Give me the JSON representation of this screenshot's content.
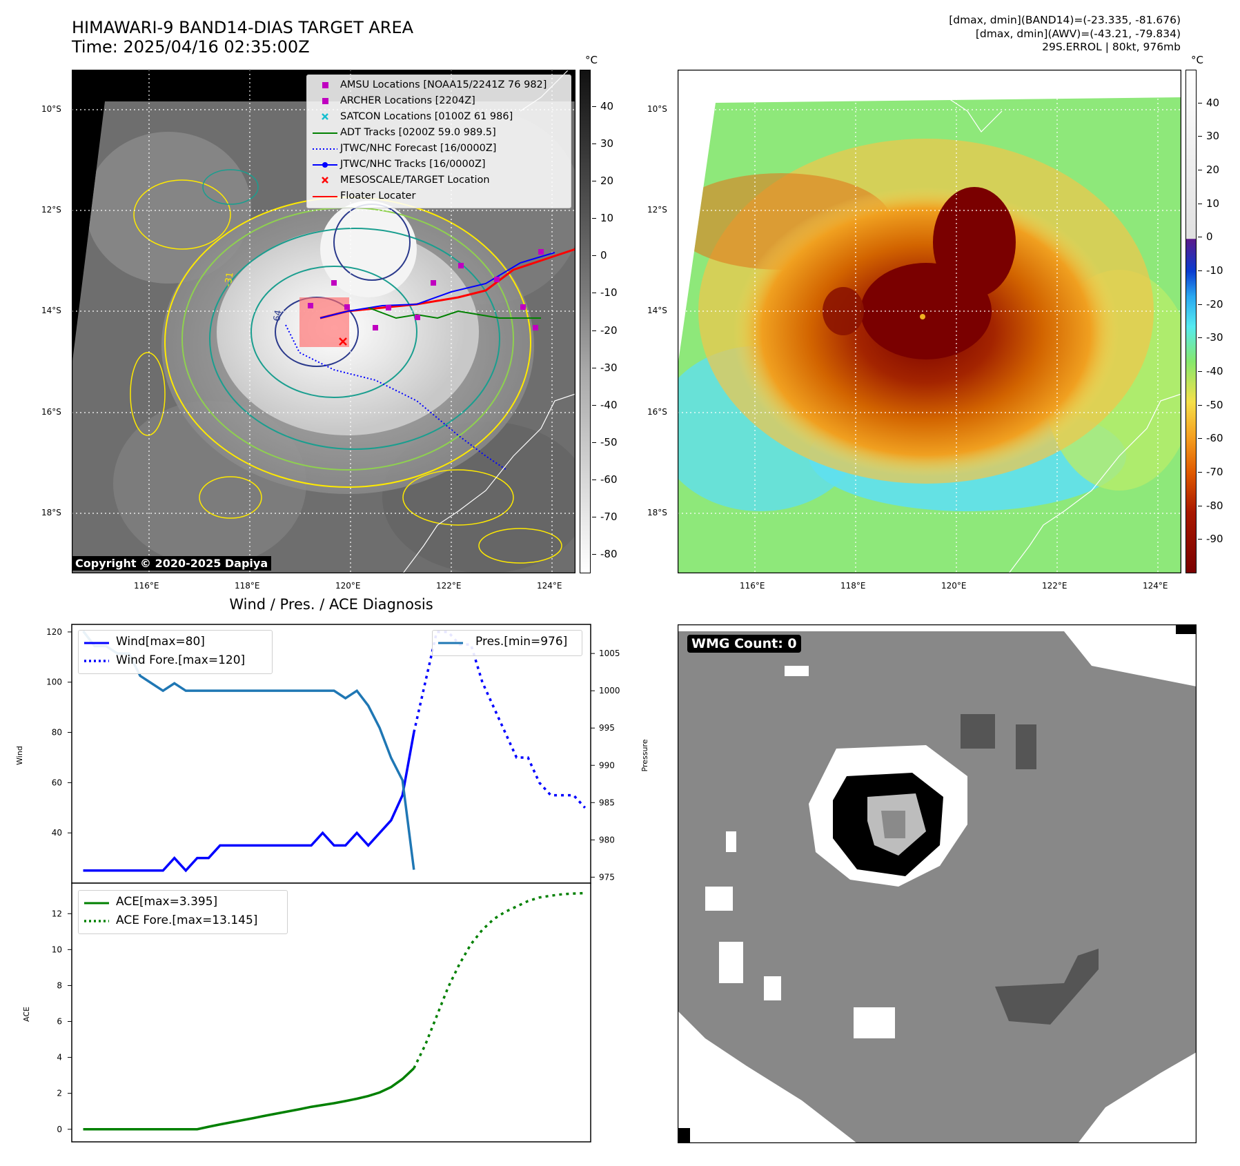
{
  "header": {
    "title_line1": "HIMAWARI-9 BAND14-DIAS TARGET AREA",
    "title_line2": "Time: 2025/04/16 02:35:00Z",
    "info_line1": "[dmax, dmin](BAND14)=(-23.335, -81.676)",
    "info_line2": "[dmax, dmin](AWV)=(-43.21, -79.834)",
    "info_line3": "29S.ERROL | 80kt, 976mb"
  },
  "map_axes": {
    "lat_labels": [
      "10°S",
      "12°S",
      "14°S",
      "16°S",
      "18°S"
    ],
    "lon_labels": [
      "116°E",
      "118°E",
      "120°E",
      "122°E",
      "124°E"
    ]
  },
  "left_map": {
    "copyright": "Copyright © 2020-2025 Dapiya",
    "contour_label": "-31",
    "contour_label_inner": "-64",
    "legend": [
      {
        "label": "AMSU Locations [NOAA15/2241Z 76 982]",
        "symbol": "square",
        "color": "#c000c0"
      },
      {
        "label": "ARCHER Locations [2204Z]",
        "symbol": "square",
        "color": "#c000c0"
      },
      {
        "label": "SATCON Locations [0100Z 61 986]",
        "symbol": "x",
        "color": "#17becf"
      },
      {
        "label": "ADT Tracks [0200Z 59.0 989.5]",
        "symbol": "line",
        "color": "#008000"
      },
      {
        "label": "JTWC/NHC Forecast [16/0000Z]",
        "symbol": "dotted",
        "color": "#0000ff"
      },
      {
        "label": "JTWC/NHC Tracks [16/0000Z]",
        "symbol": "line-dot",
        "color": "#0000ff"
      },
      {
        "label": "MESOSCALE/TARGET Location",
        "symbol": "x",
        "color": "#ff0000"
      },
      {
        "label": "Floater Locater",
        "symbol": "line",
        "color": "#ff0000"
      }
    ],
    "colorbar": {
      "unit": "°C",
      "ticks": [
        40,
        30,
        20,
        10,
        0,
        -10,
        -20,
        -30,
        -40,
        -50,
        -60,
        -70,
        -80
      ]
    }
  },
  "right_map": {
    "colorbar": {
      "unit": "°C",
      "ticks": [
        40,
        30,
        20,
        10,
        0,
        -10,
        -20,
        -30,
        -40,
        -50,
        -60,
        -70,
        -80,
        -90
      ]
    }
  },
  "diagnosis": {
    "title": "Wind / Pres. / ACE Diagnosis",
    "wind_axis_label": "Wind",
    "pressure_axis_label": "Pressure",
    "ace_axis_label": "ACE",
    "legend_wind": "Wind[max=80]",
    "legend_wind_fore": "Wind Fore.[max=120]",
    "legend_pres": "Pres.[min=976]",
    "legend_ace": "ACE[max=3.395]",
    "legend_ace_fore": "ACE Fore.[max=13.145]",
    "wind_ticks": [
      120,
      100,
      80,
      60,
      40
    ],
    "pressure_ticks": [
      1005,
      1000,
      995,
      990,
      985,
      980,
      975
    ],
    "ace_ticks": [
      12,
      10,
      8,
      6,
      4,
      2,
      0
    ]
  },
  "wmg": {
    "label": "WMG Count: 0"
  },
  "chart_data": [
    {
      "type": "line",
      "title": "Wind / Pres. / ACE Diagnosis",
      "ylabel": "Wind",
      "y2label": "Pressure",
      "ylim": [
        20,
        123
      ],
      "y2lim": [
        974.2,
        1008.9
      ],
      "xlim": [
        0,
        45.5
      ],
      "series": [
        {
          "name": "Wind[max=80]",
          "axis": "left",
          "style": "solid",
          "color": "#0000ff",
          "x": [
            1,
            2,
            3,
            4,
            5,
            6,
            7,
            8,
            9,
            10,
            11,
            12,
            13,
            14,
            15,
            16,
            17,
            18,
            19,
            20,
            21,
            22,
            23,
            24,
            25,
            26,
            27,
            28,
            29,
            30
          ],
          "values": [
            25,
            25,
            25,
            25,
            25,
            25,
            25,
            25,
            30,
            25,
            30,
            30,
            35,
            35,
            35,
            35,
            35,
            35,
            35,
            35,
            35,
            40,
            35,
            35,
            40,
            35,
            40,
            45,
            55,
            80
          ]
        },
        {
          "name": "Wind Fore.[max=120]",
          "axis": "left",
          "style": "dotted",
          "color": "#0000ff",
          "x": [
            30,
            31,
            32,
            33,
            34,
            35,
            36,
            37,
            38,
            39,
            40,
            41,
            42,
            43,
            44,
            45
          ],
          "values": [
            80,
            100,
            120,
            120,
            115,
            115,
            100,
            90,
            80,
            70,
            70,
            60,
            55,
            55,
            55,
            50
          ]
        },
        {
          "name": "Pres.[min=976]",
          "axis": "right",
          "style": "solid",
          "color": "#1f77b4",
          "x": [
            1,
            2,
            3,
            4,
            5,
            6,
            7,
            8,
            9,
            10,
            11,
            12,
            13,
            14,
            15,
            16,
            17,
            18,
            19,
            20,
            21,
            22,
            23,
            24,
            25,
            26,
            27,
            28,
            29,
            30
          ],
          "values": [
            1008,
            1006,
            1006,
            1005,
            1005,
            1002,
            1001,
            1000,
            1001,
            1000,
            1000,
            1000,
            1000,
            1000,
            1000,
            1000,
            1000,
            1000,
            1000,
            1000,
            1000,
            1000,
            1000,
            999,
            1000,
            998,
            995,
            991,
            988,
            976
          ]
        }
      ]
    },
    {
      "type": "line",
      "ylabel": "ACE",
      "ylim": [
        -0.7,
        13.7
      ],
      "xlim": [
        0,
        45.5
      ],
      "series": [
        {
          "name": "ACE[max=3.395]",
          "style": "solid",
          "color": "#008000",
          "x": [
            1,
            2,
            3,
            4,
            5,
            6,
            7,
            8,
            9,
            10,
            11,
            12,
            13,
            14,
            15,
            16,
            17,
            18,
            19,
            20,
            21,
            22,
            23,
            24,
            25,
            26,
            27,
            28,
            29,
            30
          ],
          "values": [
            0,
            0,
            0,
            0,
            0,
            0,
            0,
            0,
            0,
            0,
            0,
            0.14,
            0.27,
            0.39,
            0.51,
            0.63,
            0.76,
            0.88,
            1.0,
            1.12,
            1.25,
            1.35,
            1.45,
            1.57,
            1.7,
            1.85,
            2.05,
            2.35,
            2.8,
            3.395
          ]
        },
        {
          "name": "ACE Fore.[max=13.145]",
          "style": "dotted",
          "color": "#008000",
          "x": [
            30,
            31,
            32,
            33,
            34,
            35,
            36,
            37,
            38,
            39,
            40,
            41,
            42,
            43,
            44,
            45
          ],
          "values": [
            3.395,
            4.7,
            6.3,
            7.9,
            9.2,
            10.3,
            11.1,
            11.7,
            12.1,
            12.4,
            12.7,
            12.9,
            13.0,
            13.08,
            13.12,
            13.145
          ]
        }
      ]
    }
  ]
}
